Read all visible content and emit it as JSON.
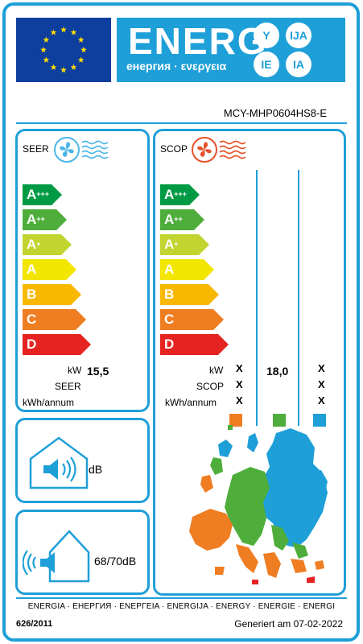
{
  "header": {
    "energy_word": "ENERG",
    "energy_subtitle": "енергия · ενεργεια",
    "lang_suffixes": [
      "Y",
      "IJA",
      "IE",
      "IA"
    ],
    "flag_color": "#0f3f9e",
    "brand_color": "#1e9fd8"
  },
  "model": "MCY-MHP0604HS8-E",
  "cooling": {
    "title": "SEER",
    "icon": "fan-cooling-icon",
    "classes": [
      "A+++",
      "A++",
      "A+",
      "A",
      "B",
      "C",
      "D"
    ],
    "kw_label": "kW",
    "kw_value": "15,5",
    "seer_label": "SEER",
    "kwh_label": "kWh/annum"
  },
  "heating": {
    "title": "SCOP",
    "icon": "fan-heating-icon",
    "classes": [
      "A+++",
      "A++",
      "A+",
      "A",
      "B",
      "C",
      "D"
    ],
    "kw_label": "kW",
    "scop_label": "SCOP",
    "kwh_label": "kWh/annum",
    "warm_column": [
      "X",
      "X",
      "X"
    ],
    "average_kw": "18,0",
    "cold_column": [
      "X",
      "X",
      "X"
    ],
    "zone_colors": [
      "#ef7d22",
      "#4fae3b",
      "#1e9fd8"
    ]
  },
  "noise_indoor": {
    "icon": "speaker-indoor-icon",
    "value": "dB"
  },
  "noise_outdoor": {
    "icon": "speaker-outdoor-icon",
    "value": "68/70dB"
  },
  "class_colors": [
    "#009a44",
    "#4fae3b",
    "#c1d42f",
    "#f2e500",
    "#f9b800",
    "#ef7d22",
    "#e52421"
  ],
  "footer": {
    "languages": "ENERGIA · ЕНЕРГИЯ · ΕΝΕΡΓΕΙΑ · ENERGIJA · ENERGY · ENERGIE · ENERGI",
    "regulation": "626/2011",
    "generated": "Generiert am 07-02-2022"
  }
}
